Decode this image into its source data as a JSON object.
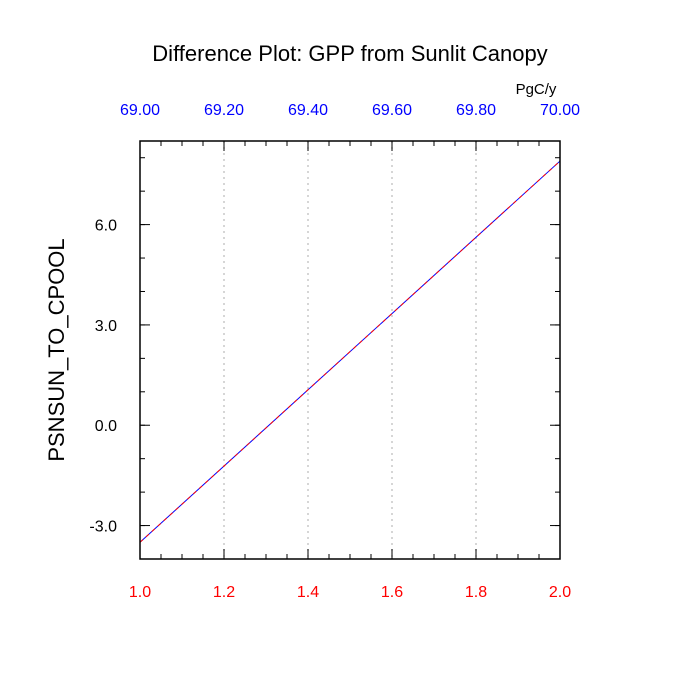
{
  "chart_data": {
    "type": "line",
    "title": "Difference Plot: GPP from Sunlit Canopy",
    "top_axis_units": "PgC/y",
    "ylabel": "PSNSUN_TO_CPOOL",
    "xlabel": "",
    "bottom_x_range": [
      1.0,
      2.0
    ],
    "top_x_range": [
      69.0,
      70.0
    ],
    "ylim": [
      -4.0,
      8.5
    ],
    "bottom_x_ticks": [
      "1.0",
      "1.2",
      "1.4",
      "1.6",
      "1.8",
      "2.0"
    ],
    "top_x_ticks": [
      "69.00",
      "69.20",
      "69.40",
      "69.60",
      "69.80",
      "70.00"
    ],
    "y_ticks": [
      "-3.0",
      "0.0",
      "3.0",
      "6.0"
    ],
    "y_tick_values": [
      -3.0,
      0.0,
      3.0,
      6.0
    ],
    "grid": "vertical dotted at top-axis major ticks",
    "colors": {
      "bottom_axis": "#ff0000",
      "top_axis": "#0000ff",
      "line_primary": "#0000ff",
      "line_dashed": "#ff0000",
      "frame": "#000000",
      "grid": "#c8c8c8"
    },
    "series": [
      {
        "style": "solid",
        "color": "#0000ff",
        "x": [
          1.0,
          2.0
        ],
        "y": [
          -3.5,
          7.9
        ]
      },
      {
        "style": "dashed",
        "color": "#ff0000",
        "x": [
          1.0,
          2.0
        ],
        "y": [
          -3.5,
          7.9
        ]
      }
    ]
  }
}
